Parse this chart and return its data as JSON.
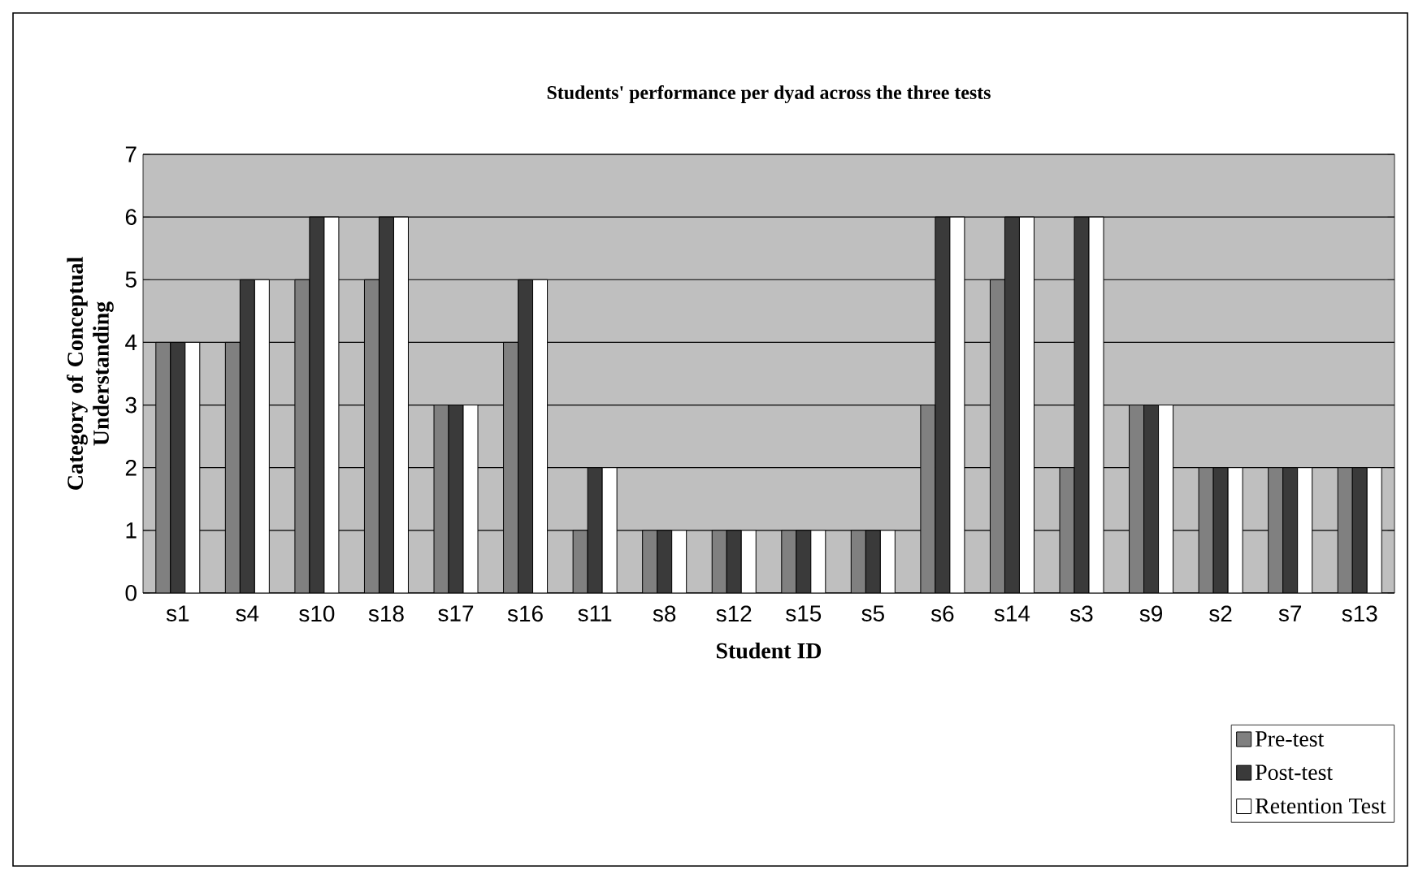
{
  "chart_data": {
    "type": "bar",
    "title": "Students' performance per dyad across the three tests",
    "xlabel": "Student ID",
    "ylabel": "Category of Conceptual Understanding",
    "categories": [
      "s1",
      "s4",
      "s10",
      "s18",
      "s17",
      "s16",
      "s11",
      "s8",
      "s12",
      "s15",
      "s5",
      "s6",
      "s14",
      "s3",
      "s9",
      "s2",
      "s7",
      "s13"
    ],
    "series": [
      {
        "name": "Pre-test",
        "color": "#808080",
        "values": [
          4,
          4,
          5,
          5,
          3,
          4,
          1,
          1,
          1,
          1,
          1,
          3,
          5,
          2,
          3,
          2,
          2,
          2
        ]
      },
      {
        "name": "Post-test",
        "color": "#3a3a3a",
        "values": [
          4,
          5,
          6,
          6,
          3,
          5,
          2,
          1,
          1,
          1,
          1,
          6,
          6,
          6,
          3,
          2,
          2,
          2
        ]
      },
      {
        "name": "Retention Test",
        "color": "#ffffff",
        "values": [
          4,
          5,
          6,
          6,
          3,
          5,
          2,
          1,
          1,
          1,
          1,
          6,
          6,
          6,
          3,
          2,
          2,
          2
        ]
      }
    ],
    "ylim": [
      0,
      7
    ],
    "yticks": [
      0,
      1,
      2,
      3,
      4,
      5,
      6,
      7
    ],
    "grid": "y",
    "legend": "bottom right"
  }
}
